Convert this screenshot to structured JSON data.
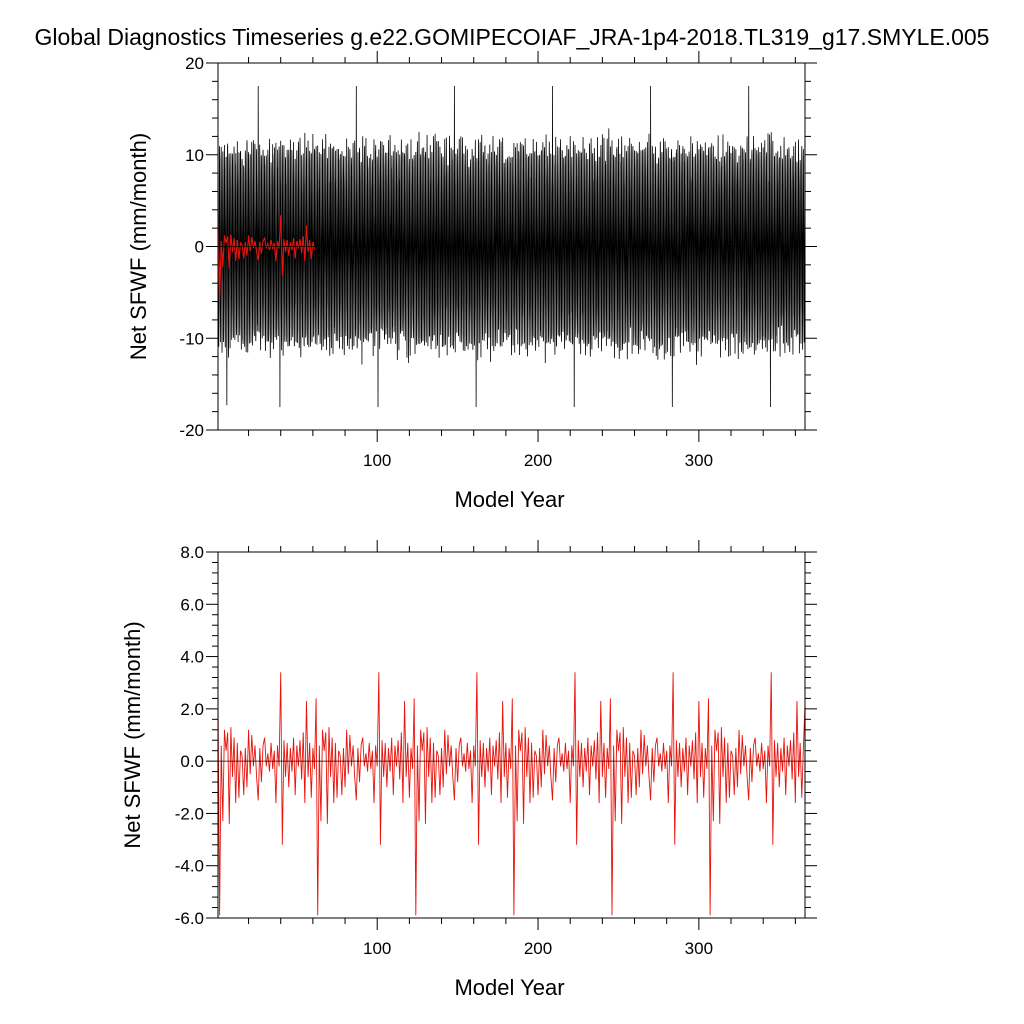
{
  "title": "Global Diagnostics Timeseries g.e22.GOMIPECOIAF_JRA-1p4-2018.TL319_g17.SMYLE.005",
  "colors": {
    "monthly": "#000000",
    "annual": "#e8140c",
    "zero_line": "#000000"
  },
  "chart_data": [
    {
      "type": "line",
      "xlabel": "Model Year",
      "ylabel": "Net SFWF (mm/month)",
      "xlim": [
        1,
        366
      ],
      "ylim": [
        -20,
        20
      ],
      "xticks": [
        100,
        200,
        300
      ],
      "xtick_labels": [
        "100",
        "200",
        "300"
      ],
      "yticks": [
        -20,
        -10,
        0,
        10,
        20
      ],
      "ytick_labels": [
        "-20",
        "-10",
        "0",
        "10",
        "20"
      ],
      "reference_line": 0,
      "series": [
        {
          "style": "monthly",
          "points_per_year": 12,
          "seasonal_amplitude": 10.5,
          "noise_amplitude": 1.5,
          "notable_peaks": [
            {
              "x": 26,
              "y": 17.5
            },
            {
              "x": 87,
              "y": 17.5
            },
            {
              "x": 148,
              "y": 17.5
            },
            {
              "x": 209,
              "y": 17.5
            },
            {
              "x": 270,
              "y": 17.5
            },
            {
              "x": 331,
              "y": 17.5
            }
          ],
          "notable_troughs": [
            {
              "x": 7,
              "y": -17.3
            },
            {
              "x": 40,
              "y": -17.5
            },
            {
              "x": 101,
              "y": -17.5
            },
            {
              "x": 162,
              "y": -17.5
            },
            {
              "x": 223,
              "y": -17.5
            },
            {
              "x": 284,
              "y": -17.5
            },
            {
              "x": 345,
              "y": -17.5
            }
          ]
        },
        {
          "style": "annual",
          "x": [
            1,
            2,
            3,
            4,
            5,
            6,
            7,
            8,
            9,
            10,
            11,
            12,
            13,
            14,
            15,
            16,
            17,
            18,
            19,
            20,
            21,
            22,
            23,
            24,
            25,
            26,
            27,
            28,
            29,
            30,
            31,
            32,
            33,
            34,
            35,
            36,
            37,
            38,
            39,
            40,
            41,
            42,
            43,
            44,
            45,
            46,
            47,
            48,
            49,
            50,
            51,
            52,
            53,
            54,
            55,
            56,
            57,
            58,
            59,
            60,
            61
          ],
          "y": [
            2.4,
            -5.9,
            0.6,
            -2.3,
            1.2,
            0.4,
            1.1,
            -2.4,
            1.3,
            -0.6,
            0.9,
            -1.6,
            0.7,
            -1.4,
            0.4,
            0.2,
            -1.3,
            0.5,
            -1.0,
            1.2,
            -0.5,
            1.0,
            -0.2,
            0.6,
            -0.6,
            -1.5,
            0.5,
            -0.8,
            0.6,
            0.9,
            -0.2,
            0.3,
            -0.4,
            0.7,
            -0.3,
            0.4,
            -1.6,
            0.6,
            -0.2,
            3.4,
            -3.2,
            0.8,
            -0.6,
            0.7,
            -1.0,
            0.5,
            -0.4,
            0.9,
            -1.3,
            0.6,
            -0.2,
            0.8,
            -0.7,
            1.1,
            -1.6,
            2.3,
            -0.6,
            0.7,
            -1.4,
            0.5,
            -0.3
          ]
        }
      ]
    },
    {
      "type": "line",
      "xlabel": "Model Year",
      "ylabel": "Net SFWF (mm/month)",
      "xlim": [
        1,
        366
      ],
      "ylim": [
        -6.0,
        8.0
      ],
      "xticks": [
        100,
        200,
        300
      ],
      "xtick_labels": [
        "100",
        "200",
        "300"
      ],
      "yticks": [
        -6.0,
        -4.0,
        -2.0,
        0.0,
        2.0,
        4.0,
        6.0,
        8.0
      ],
      "ytick_labels": [
        "-6.0",
        "-4.0",
        "-2.0",
        "0.0",
        "2.0",
        "4.0",
        "6.0",
        "8.0"
      ],
      "reference_line": 0,
      "series": [
        {
          "style": "annual",
          "x": [
            1,
            2,
            3,
            4,
            5,
            6,
            7,
            8,
            9,
            10,
            11,
            12,
            13,
            14,
            15,
            16,
            17,
            18,
            19,
            20,
            21,
            22,
            23,
            24,
            25,
            26,
            27,
            28,
            29,
            30,
            31,
            32,
            33,
            34,
            35,
            36,
            37,
            38,
            39,
            40,
            41,
            42,
            43,
            44,
            45,
            46,
            47,
            48,
            49,
            50,
            51,
            52,
            53,
            54,
            55,
            56,
            57,
            58,
            59,
            60,
            61
          ],
          "y": [
            2.4,
            -5.9,
            0.6,
            -2.3,
            1.2,
            0.4,
            1.1,
            -2.4,
            1.3,
            -0.6,
            0.9,
            -1.6,
            0.7,
            -1.4,
            0.4,
            0.2,
            -1.3,
            0.5,
            -1.0,
            1.2,
            -0.5,
            1.0,
            -0.2,
            0.6,
            -0.6,
            -1.5,
            0.5,
            -0.8,
            0.6,
            0.9,
            -0.2,
            0.3,
            -0.4,
            0.7,
            -0.3,
            0.4,
            -1.6,
            0.6,
            -0.2,
            3.4,
            -3.2,
            0.8,
            -0.6,
            0.7,
            -1.0,
            0.5,
            -0.4,
            0.9,
            -1.3,
            0.6,
            -0.2,
            0.8,
            -0.7,
            1.1,
            -1.6,
            2.3,
            -0.6,
            0.7,
            -1.4,
            0.5,
            -0.3
          ],
          "repeat_period_years": 61,
          "end_value": {
            "x": 366,
            "y": 2.2
          }
        }
      ]
    }
  ]
}
